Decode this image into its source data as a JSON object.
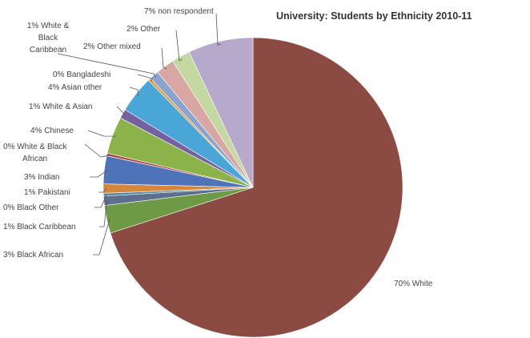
{
  "chart_data": {
    "type": "pie",
    "title": "University: Students by Ethnicity 2010-11",
    "unit": "%",
    "slices": [
      {
        "label": "70% White",
        "value": 70,
        "color": "#8b4a42"
      },
      {
        "label": "3% Black African",
        "value": 3,
        "color": "#6f9a45"
      },
      {
        "label": "1% Black Caribbean",
        "value": 1,
        "color": "#5d6f8c"
      },
      {
        "label": "0% Black Other",
        "value": 0.3,
        "color": "#4f8aa3"
      },
      {
        "label": "1% Pakistani",
        "value": 1,
        "color": "#d7873c"
      },
      {
        "label": "3% Indian",
        "value": 3,
        "color": "#4f73b8"
      },
      {
        "label": "0% White & Black African",
        "value": 0.3,
        "color": "#b04a45"
      },
      {
        "label": "4% Chinese",
        "value": 4,
        "color": "#8cb34a"
      },
      {
        "label": "1% White & Asian",
        "value": 1,
        "color": "#7560a0"
      },
      {
        "label": "4% Asian other",
        "value": 4,
        "color": "#49a6d6"
      },
      {
        "label": "0% Bangladeshi",
        "value": 0.3,
        "color": "#e79a3f"
      },
      {
        "label": "1% White & Black Caribbean",
        "value": 1,
        "color": "#8aa5cd"
      },
      {
        "label": "2% Other mixed",
        "value": 2,
        "color": "#d8a6a3"
      },
      {
        "label": "2% Other",
        "value": 2,
        "color": "#c4d8a2"
      },
      {
        "label": "7% non respondent",
        "value": 7,
        "color": "#b6a9cc"
      }
    ]
  }
}
